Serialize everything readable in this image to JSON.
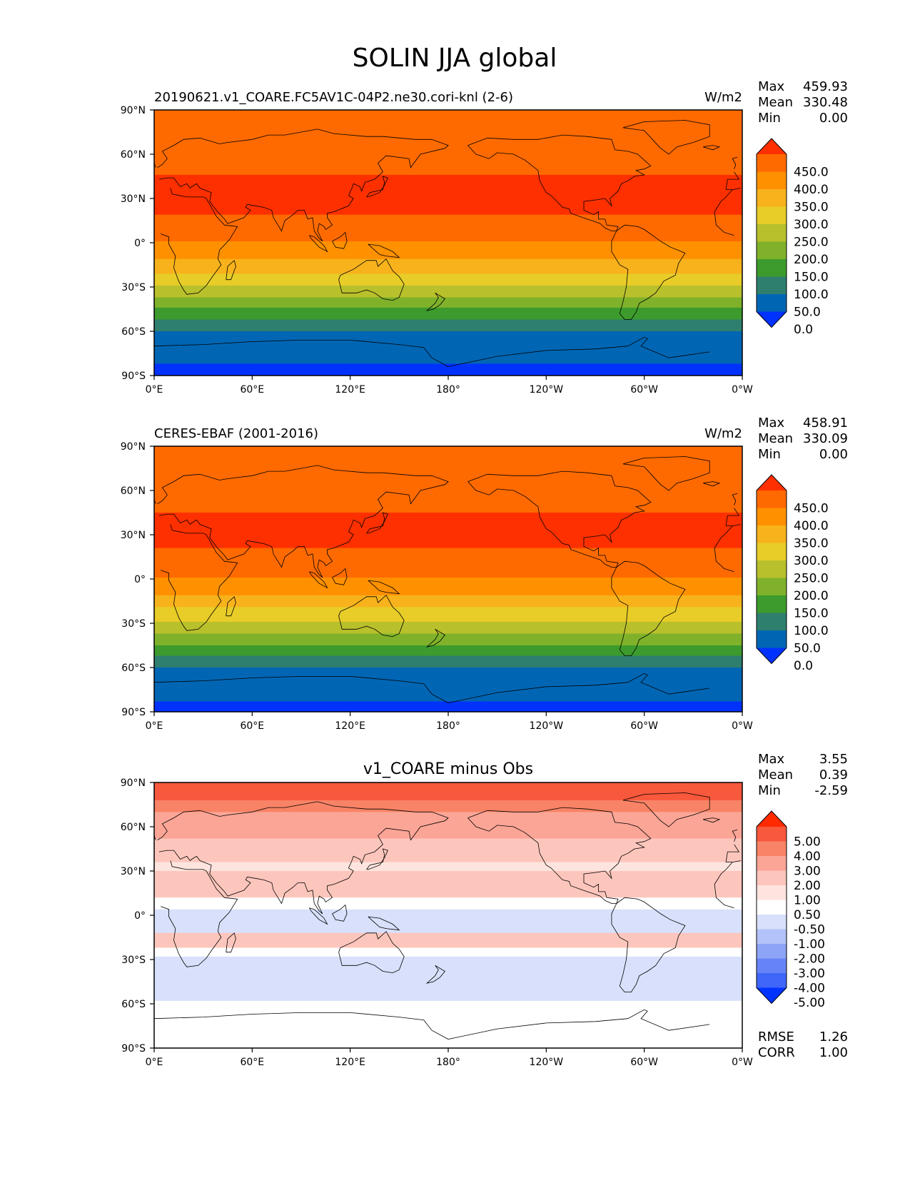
{
  "figure_title": "SOLIN JJA global",
  "lon_ticks": [
    "0°E",
    "60°E",
    "120°E",
    "180°",
    "120°W",
    "60°W",
    "0°W"
  ],
  "lat_ticks": [
    "90°N",
    "60°N",
    "30°N",
    "0°",
    "30°S",
    "60°S",
    "90°S"
  ],
  "stat_labels": {
    "max": "Max",
    "mean": "Mean",
    "min": "Min",
    "rmse": "RMSE",
    "corr": "CORR"
  },
  "chart_data": [
    {
      "type": "heatmap",
      "title_left": "20190621.v1_COARE.FC5AV1C-04P2.ne30.cori-knl (2-6)",
      "title_center": "",
      "units": "W/m2",
      "stats": {
        "max": "459.93",
        "mean": "330.48",
        "min": "0.00"
      },
      "colorbar": {
        "labels": [
          "450.0",
          "400.0",
          "350.0",
          "300.0",
          "250.0",
          "200.0",
          "150.0",
          "100.0",
          "50.0",
          "0.0"
        ],
        "colors": [
          "#ff3000",
          "#ff6a00",
          "#ff9000",
          "#f7b21c",
          "#e8cc28",
          "#b8c02c",
          "#7fb22a",
          "#3c9b2c",
          "#2e7f6e",
          "#0066b4",
          "#0032ff"
        ]
      },
      "bands": [
        {
          "lat_top": 90,
          "lat_bottom": 46,
          "color": "#ff6a00"
        },
        {
          "lat_top": 46,
          "lat_bottom": 19,
          "color": "#ff3000"
        },
        {
          "lat_top": 19,
          "lat_bottom": 1,
          "color": "#ff6a00"
        },
        {
          "lat_top": 1,
          "lat_bottom": -11,
          "color": "#ff9000"
        },
        {
          "lat_top": -11,
          "lat_bottom": -21,
          "color": "#f7b21c"
        },
        {
          "lat_top": -21,
          "lat_bottom": -29,
          "color": "#e8cc28"
        },
        {
          "lat_top": -29,
          "lat_bottom": -37,
          "color": "#b8c02c"
        },
        {
          "lat_top": -37,
          "lat_bottom": -44,
          "color": "#7fb22a"
        },
        {
          "lat_top": -44,
          "lat_bottom": -52,
          "color": "#3c9b2c"
        },
        {
          "lat_top": -52,
          "lat_bottom": -60,
          "color": "#2e7f6e"
        },
        {
          "lat_top": -60,
          "lat_bottom": -82,
          "color": "#0066b4"
        },
        {
          "lat_top": -82,
          "lat_bottom": -90,
          "color": "#0032ff"
        }
      ]
    },
    {
      "type": "heatmap",
      "title_left": "CERES-EBAF (2001-2016)",
      "title_center": "",
      "units": "W/m2",
      "stats": {
        "max": "458.91",
        "mean": "330.09",
        "min": "0.00"
      },
      "colorbar": {
        "labels": [
          "450.0",
          "400.0",
          "350.0",
          "300.0",
          "250.0",
          "200.0",
          "150.0",
          "100.0",
          "50.0",
          "0.0"
        ],
        "colors": [
          "#ff3000",
          "#ff6a00",
          "#ff9000",
          "#f7b21c",
          "#e8cc28",
          "#b8c02c",
          "#7fb22a",
          "#3c9b2c",
          "#2e7f6e",
          "#0066b4",
          "#0032ff"
        ]
      },
      "bands": [
        {
          "lat_top": 90,
          "lat_bottom": 45,
          "color": "#ff6a00"
        },
        {
          "lat_top": 45,
          "lat_bottom": 21,
          "color": "#ff3000"
        },
        {
          "lat_top": 21,
          "lat_bottom": 1,
          "color": "#ff6a00"
        },
        {
          "lat_top": 1,
          "lat_bottom": -11,
          "color": "#ff9000"
        },
        {
          "lat_top": -11,
          "lat_bottom": -19,
          "color": "#f7b21c"
        },
        {
          "lat_top": -19,
          "lat_bottom": -29,
          "color": "#e8cc28"
        },
        {
          "lat_top": -29,
          "lat_bottom": -37,
          "color": "#b8c02c"
        },
        {
          "lat_top": -37,
          "lat_bottom": -45,
          "color": "#7fb22a"
        },
        {
          "lat_top": -45,
          "lat_bottom": -52,
          "color": "#3c9b2c"
        },
        {
          "lat_top": -52,
          "lat_bottom": -60,
          "color": "#2e7f6e"
        },
        {
          "lat_top": -60,
          "lat_bottom": -83,
          "color": "#0066b4"
        },
        {
          "lat_top": -83,
          "lat_bottom": -90,
          "color": "#0032ff"
        }
      ]
    },
    {
      "type": "heatmap",
      "title_left": "",
      "title_center": "v1_COARE minus Obs",
      "units": "",
      "stats": {
        "max": "3.55",
        "mean": "0.39",
        "min": "-2.59"
      },
      "rmse": "1.26",
      "corr": "1.00",
      "colorbar": {
        "labels": [
          "5.00",
          "4.00",
          "3.00",
          "2.00",
          "1.00",
          "0.50",
          "-0.50",
          "-1.00",
          "-2.00",
          "-3.00",
          "-4.00",
          "-5.00"
        ],
        "colors": [
          "#ff2a00",
          "#f8583c",
          "#f98366",
          "#fba596",
          "#fdc6bc",
          "#fee4de",
          "#ffffff",
          "#d8e0fb",
          "#b3c2f8",
          "#8ea4f6",
          "#6684f7",
          "#3f66f9",
          "#0033ff"
        ]
      },
      "bands": [
        {
          "lat_top": 90,
          "lat_bottom": 78,
          "color": "#f8583c"
        },
        {
          "lat_top": 78,
          "lat_bottom": 70,
          "color": "#f98366"
        },
        {
          "lat_top": 70,
          "lat_bottom": 52,
          "color": "#fba596"
        },
        {
          "lat_top": 52,
          "lat_bottom": 36,
          "color": "#fdc6bc"
        },
        {
          "lat_top": 36,
          "lat_bottom": 30,
          "color": "#fee4de"
        },
        {
          "lat_top": 30,
          "lat_bottom": 12,
          "color": "#fdc6bc"
        },
        {
          "lat_top": 12,
          "lat_bottom": 4,
          "color": "#ffffff"
        },
        {
          "lat_top": 4,
          "lat_bottom": -12,
          "color": "#d8e0fb"
        },
        {
          "lat_top": -12,
          "lat_bottom": -22,
          "color": "#fdc6bc"
        },
        {
          "lat_top": -22,
          "lat_bottom": -28,
          "color": "#ffffff"
        },
        {
          "lat_top": -28,
          "lat_bottom": -58,
          "color": "#d8e0fb"
        },
        {
          "lat_top": -58,
          "lat_bottom": -90,
          "color": "#ffffff"
        }
      ]
    }
  ]
}
